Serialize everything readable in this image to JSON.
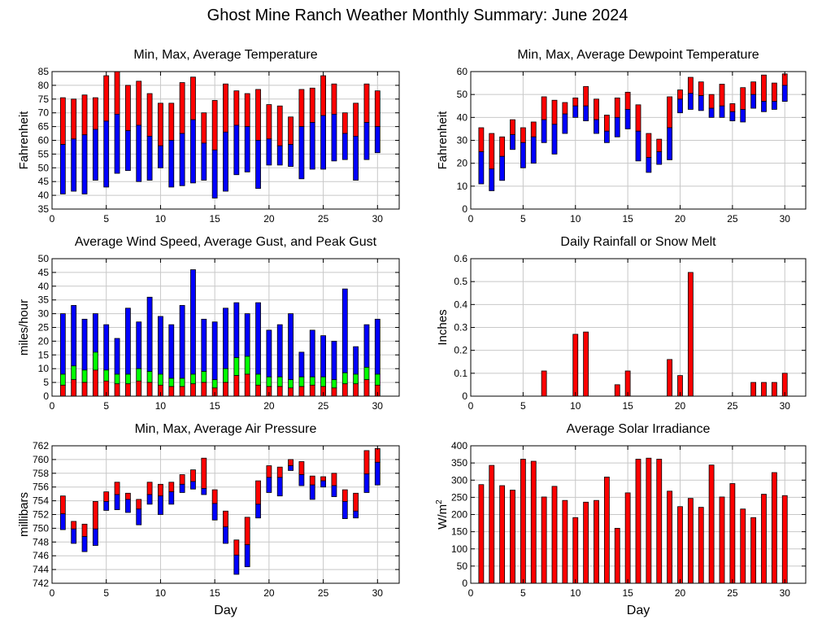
{
  "title": "Ghost Mine Ranch Weather Monthly Summary: June 2024",
  "colors": {
    "red": "#ff0000",
    "blue": "#0000ff",
    "green": "#00ff00",
    "frame": "#000000"
  },
  "chart_data": [
    {
      "id": "temperature",
      "type": "bar",
      "title": "Min, Max, Average Temperature",
      "xlabel": "",
      "ylabel": "Fahrenheit",
      "xlim": [
        0,
        32
      ],
      "ylim": [
        35,
        85
      ],
      "xticks": [
        0,
        5,
        10,
        15,
        20,
        25,
        30
      ],
      "yticks": [
        35,
        40,
        45,
        50,
        55,
        60,
        65,
        70,
        75,
        80,
        85
      ],
      "x": [
        1,
        2,
        3,
        4,
        5,
        6,
        7,
        8,
        9,
        10,
        11,
        12,
        13,
        14,
        15,
        16,
        17,
        18,
        19,
        20,
        21,
        22,
        23,
        24,
        25,
        26,
        27,
        28,
        29,
        30
      ],
      "min": [
        40.5,
        41.5,
        40.5,
        45.5,
        43,
        48,
        49,
        45,
        45.5,
        50,
        43,
        43.5,
        44.5,
        45.5,
        39,
        41.5,
        47.5,
        48.5,
        42.5,
        51,
        51,
        50.5,
        46,
        49.5,
        49.5,
        52.5,
        53,
        45.5,
        53,
        55.5
      ],
      "avg": [
        58.5,
        60.5,
        62,
        64,
        67,
        69.5,
        63.5,
        65.5,
        61.5,
        58,
        60,
        62.5,
        67.5,
        59,
        56.5,
        63,
        65.5,
        65,
        60,
        60.5,
        58,
        58.5,
        65,
        66.5,
        69,
        69.5,
        62.5,
        61.5,
        66.5,
        65
      ],
      "max": [
        75.5,
        75,
        76.5,
        75.5,
        83.5,
        85,
        80,
        81.5,
        77,
        73.5,
        73.5,
        81,
        83,
        70,
        74.5,
        80.5,
        78,
        77,
        78.5,
        73,
        72.5,
        68.5,
        78.5,
        79,
        83.5,
        80.5,
        70,
        73.5,
        80.5,
        78
      ]
    },
    {
      "id": "dewpoint",
      "type": "bar",
      "title": "Min, Max, Average Dewpoint Temperature",
      "xlabel": "",
      "ylabel": "Fahrenheit",
      "xlim": [
        0,
        32
      ],
      "ylim": [
        0,
        60
      ],
      "xticks": [
        0,
        5,
        10,
        15,
        20,
        25,
        30
      ],
      "yticks": [
        0,
        10,
        20,
        30,
        40,
        50,
        60
      ],
      "x": [
        1,
        2,
        3,
        4,
        5,
        6,
        7,
        8,
        9,
        10,
        11,
        12,
        13,
        14,
        15,
        16,
        17,
        18,
        19,
        20,
        21,
        22,
        23,
        24,
        25,
        26,
        27,
        28,
        29,
        30
      ],
      "min": [
        11,
        8,
        12.5,
        26,
        18,
        20,
        29,
        24,
        33,
        40,
        38.5,
        33,
        29,
        31.5,
        35,
        21,
        16,
        19.5,
        21.5,
        42,
        43.5,
        43,
        40,
        40,
        38.5,
        38,
        44,
        42.5,
        43.5,
        47
      ],
      "avg": [
        25,
        17.5,
        23,
        32.5,
        29,
        31.5,
        39,
        37,
        41.5,
        45,
        45,
        39,
        34,
        40,
        43.5,
        34,
        22.5,
        25,
        35.5,
        48,
        50.5,
        49.5,
        44,
        45,
        42.5,
        43.5,
        50,
        47,
        47,
        54
      ],
      "max": [
        35.5,
        33,
        31.5,
        39,
        35.5,
        38,
        49,
        47.5,
        46.5,
        48.5,
        53.5,
        48,
        41,
        48.5,
        51,
        45.5,
        33,
        30.5,
        49,
        52,
        57.5,
        55.5,
        50,
        54.5,
        46,
        53,
        55.5,
        58.5,
        55,
        59
      ]
    },
    {
      "id": "wind",
      "type": "bar",
      "title": "Average Wind Speed, Average Gust, and Peak Gust",
      "xlabel": "",
      "ylabel": "miles/hour",
      "xlim": [
        0,
        32
      ],
      "ylim": [
        0,
        50
      ],
      "xticks": [
        0,
        5,
        10,
        15,
        20,
        25,
        30
      ],
      "yticks": [
        0,
        5,
        10,
        15,
        20,
        25,
        30,
        35,
        40,
        45,
        50
      ],
      "x": [
        1,
        2,
        3,
        4,
        5,
        6,
        7,
        8,
        9,
        10,
        11,
        12,
        13,
        14,
        15,
        16,
        17,
        18,
        19,
        20,
        21,
        22,
        23,
        24,
        25,
        26,
        27,
        28,
        29,
        30
      ],
      "avg_speed": [
        4,
        6,
        5,
        9.5,
        5.5,
        4.5,
        4.5,
        5.5,
        5,
        4,
        3.5,
        3.5,
        4.5,
        5,
        3,
        5,
        7.5,
        8,
        4,
        3.5,
        3.5,
        3,
        3.5,
        4,
        3.5,
        3,
        4.5,
        4.5,
        6,
        4
      ],
      "avg_gust": [
        8,
        11,
        9.5,
        16,
        9.5,
        8,
        8,
        10,
        9,
        8,
        6.5,
        6.5,
        8,
        9,
        6,
        10,
        14,
        14.5,
        8,
        7,
        7,
        6,
        7,
        7,
        7,
        6,
        8.5,
        8,
        10.5,
        8
      ],
      "peak_gust": [
        30,
        33,
        28,
        30,
        26,
        21,
        32,
        27,
        36,
        29,
        26,
        33,
        46,
        28,
        27,
        32,
        34,
        30,
        34,
        24,
        26,
        30,
        16,
        24,
        22,
        20,
        39,
        18,
        26,
        28
      ]
    },
    {
      "id": "rainfall",
      "type": "bar",
      "title": "Daily Rainfall or Snow Melt",
      "xlabel": "",
      "ylabel": "Inches",
      "xlim": [
        0,
        32
      ],
      "ylim": [
        0,
        0.6
      ],
      "xticks": [
        0,
        5,
        10,
        15,
        20,
        25,
        30
      ],
      "yticks": [
        0,
        0.1,
        0.2,
        0.3,
        0.4,
        0.5,
        0.6
      ],
      "x": [
        7,
        10,
        11,
        14,
        15,
        19,
        20,
        21,
        27,
        28,
        29,
        30
      ],
      "values": [
        0.11,
        0.27,
        0.28,
        0.05,
        0.11,
        0.16,
        0.09,
        0.54,
        0.06,
        0.06,
        0.06,
        0.1
      ]
    },
    {
      "id": "pressure",
      "type": "bar",
      "title": "Min, Max, Average Air Pressure",
      "xlabel": "Day",
      "ylabel": "millibars",
      "xlim": [
        0,
        32
      ],
      "ylim": [
        742,
        762
      ],
      "xticks": [
        0,
        5,
        10,
        15,
        20,
        25,
        30
      ],
      "yticks": [
        742,
        744,
        746,
        748,
        750,
        752,
        754,
        756,
        758,
        760,
        762
      ],
      "x": [
        1,
        2,
        3,
        4,
        5,
        6,
        7,
        8,
        9,
        10,
        11,
        12,
        13,
        14,
        15,
        16,
        17,
        18,
        19,
        20,
        21,
        22,
        23,
        24,
        25,
        26,
        27,
        28,
        29,
        30
      ],
      "min": [
        749.8,
        747.8,
        746.6,
        747.5,
        752.6,
        752.7,
        752.3,
        750.5,
        753.5,
        752,
        753.5,
        755.2,
        755.7,
        754.9,
        751.2,
        747.8,
        743.3,
        744.4,
        751.5,
        755.2,
        754.7,
        758.4,
        756.2,
        754.2,
        756,
        754.6,
        751.4,
        751.5,
        755.2,
        756.3
      ],
      "avg": [
        752.1,
        749.9,
        748.8,
        749.9,
        753.9,
        754.9,
        754.2,
        752.8,
        754.9,
        754.7,
        755.3,
        756.4,
        756.8,
        755.8,
        753.6,
        750.2,
        746.1,
        747.6,
        753.5,
        757.4,
        757.4,
        759.1,
        757.8,
        756.3,
        756.9,
        756.2,
        753.9,
        752.5,
        757.9,
        759.6
      ],
      "max": [
        754.7,
        751,
        750.6,
        753.9,
        755.3,
        756.7,
        755.1,
        754.2,
        756.7,
        756.4,
        756.7,
        757.8,
        758.5,
        760.2,
        755.6,
        752.5,
        748.3,
        751.6,
        756.9,
        759.1,
        758.9,
        760,
        759.7,
        757.6,
        757.5,
        758,
        755.6,
        755.1,
        761.3,
        761.6
      ]
    },
    {
      "id": "solar",
      "type": "bar",
      "title": "Average Solar Irradiance",
      "xlabel": "Day",
      "ylabel": "W/m",
      "ylabel_sup": "2",
      "xlim": [
        0,
        32
      ],
      "ylim": [
        0,
        400
      ],
      "xticks": [
        0,
        5,
        10,
        15,
        20,
        25,
        30
      ],
      "yticks": [
        0,
        50,
        100,
        150,
        200,
        250,
        300,
        350,
        400
      ],
      "x": [
        1,
        2,
        3,
        4,
        5,
        6,
        7,
        8,
        9,
        10,
        11,
        12,
        13,
        14,
        15,
        16,
        17,
        18,
        19,
        20,
        21,
        22,
        23,
        24,
        25,
        26,
        27,
        28,
        29,
        30
      ],
      "values": [
        287,
        343,
        284,
        271,
        361,
        355,
        251,
        282,
        241,
        191,
        236,
        241,
        309,
        160,
        263,
        361,
        364,
        361,
        268,
        223,
        247,
        221,
        344,
        251,
        290,
        216,
        191,
        259,
        322,
        255
      ]
    }
  ]
}
